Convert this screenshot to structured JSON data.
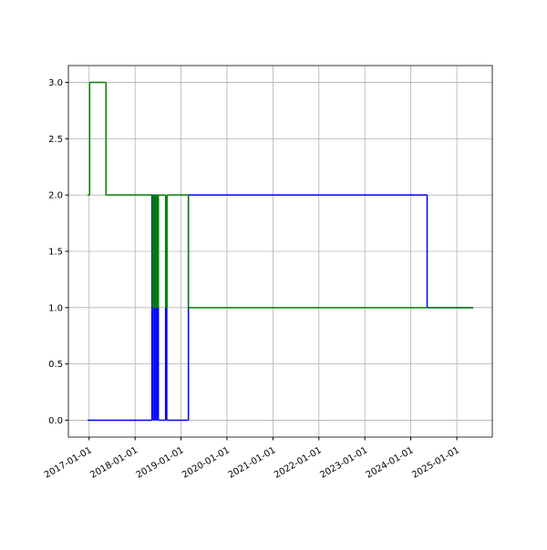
{
  "chart_data": {
    "type": "line",
    "drawstyle": "steps-post",
    "grid": true,
    "xlim": [
      "2016-07-20",
      "2025-10-10"
    ],
    "xticks": [
      "2017-01-01",
      "2018-01-01",
      "2019-01-01",
      "2020-01-01",
      "2021-01-01",
      "2022-01-01",
      "2023-01-01",
      "2024-01-01",
      "2025-01-01"
    ],
    "ylim": [
      -0.15,
      3.15
    ],
    "yticks": [
      {
        "value": 0,
        "label": "0.0"
      },
      0.5,
      {
        "value": 1,
        "label": "1.0"
      },
      1.5,
      {
        "value": 2,
        "label": "2.0"
      },
      2.5,
      {
        "value": 3,
        "label": "3.0"
      }
    ],
    "series": [
      {
        "color": "#0000ff",
        "x": [
          "2016-12-20",
          "2018-05-15",
          "2018-05-25",
          "2018-06-05",
          "2018-06-15",
          "2018-06-25",
          "2018-07-05",
          "2018-09-01",
          "2018-09-10",
          "2019-03-01",
          "2024-05-10",
          "2025-05-10"
        ],
        "values": [
          0,
          2,
          0,
          2,
          0,
          2,
          0,
          1,
          0,
          2,
          1,
          1
        ]
      },
      {
        "color": "#008000",
        "x": [
          "2016-12-20",
          "2017-01-05",
          "2017-05-15",
          "2018-05-20",
          "2018-05-28",
          "2018-06-08",
          "2018-06-18",
          "2018-06-28",
          "2018-07-05",
          "2018-09-01",
          "2018-09-12",
          "2019-03-01",
          "2025-05-10"
        ],
        "values": [
          2,
          3,
          2,
          1,
          2,
          1,
          2,
          1,
          2,
          1,
          2,
          1,
          1
        ]
      }
    ]
  }
}
